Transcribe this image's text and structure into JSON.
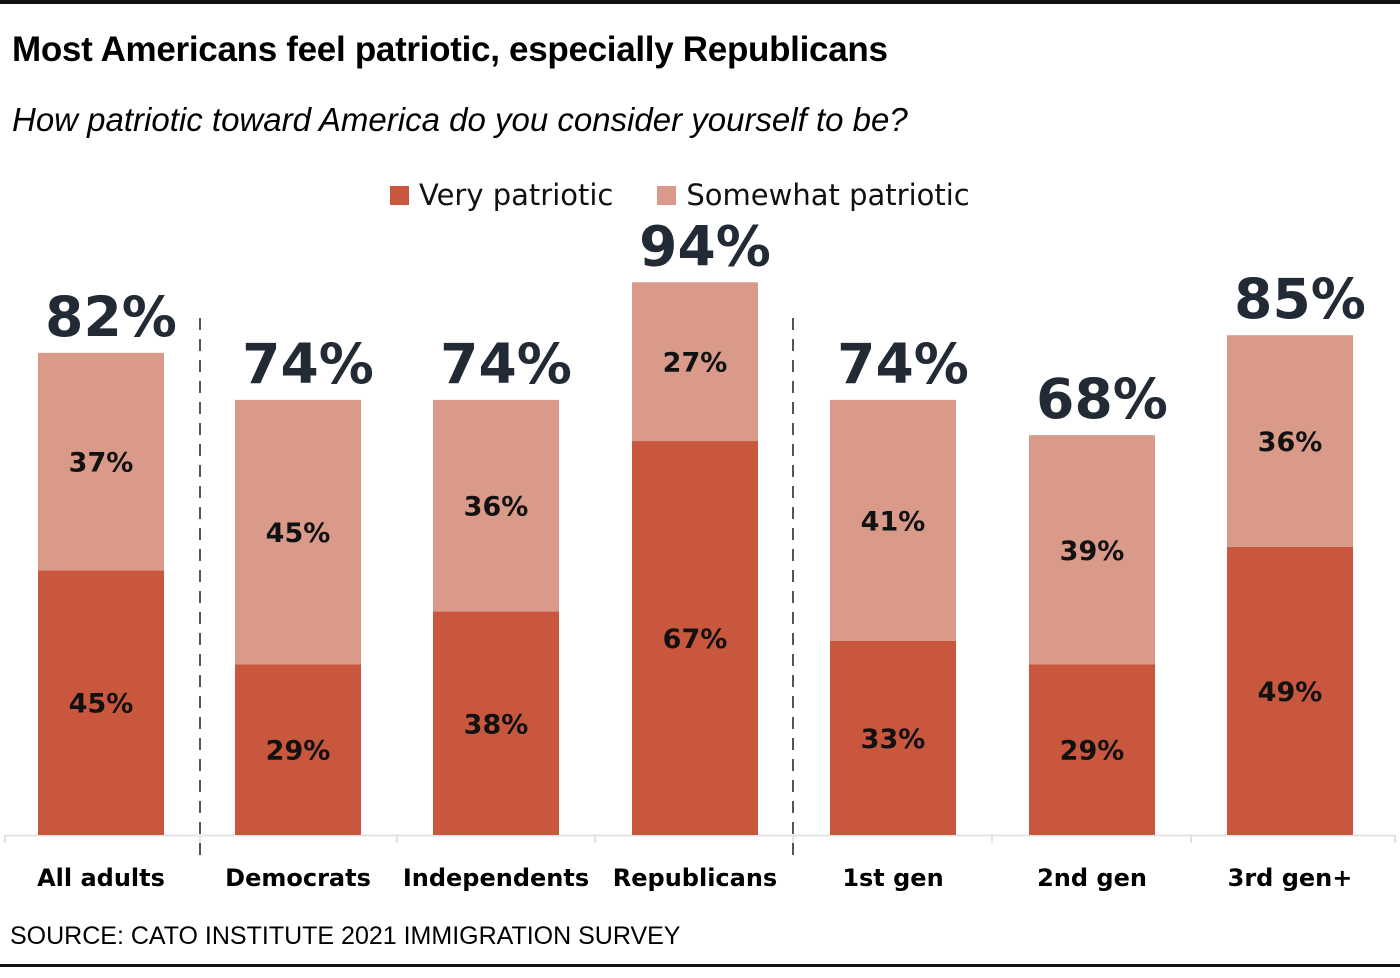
{
  "chart_data": {
    "type": "bar",
    "stacked": true,
    "title": "Most Americans feel patriotic, especially Republicans",
    "subtitle": "How patriotic toward America do you consider yourself to be?",
    "source": "SOURCE: CATO INSTITUTE 2021 IMMIGRATION SURVEY",
    "xlabel": "",
    "ylabel": "",
    "ylim": [
      0,
      100
    ],
    "grid": false,
    "legend_position": "top-center",
    "categories": [
      "All adults",
      "Democrats",
      "Independents",
      "Republicans",
      "1st gen",
      "2nd gen",
      "3rd gen+"
    ],
    "series": [
      {
        "name": "Very patriotic",
        "color": "#c9573e",
        "values": [
          45,
          29,
          38,
          67,
          33,
          29,
          49
        ],
        "labels": [
          "45%",
          "29%",
          "38%",
          "67%",
          "33%",
          "29%",
          "49%"
        ]
      },
      {
        "name": "Somewhat patriotic",
        "color": "#d99a89",
        "values": [
          37,
          45,
          36,
          27,
          41,
          39,
          36
        ],
        "labels": [
          "37%",
          "45%",
          "36%",
          "27%",
          "41%",
          "39%",
          "36%"
        ]
      }
    ],
    "totals": [
      82,
      74,
      74,
      94,
      74,
      68,
      85
    ],
    "total_labels": [
      "82%",
      "74%",
      "74%",
      "94%",
      "74%",
      "68%",
      "85%"
    ],
    "group_separators_after": [
      "All adults",
      "Republicans"
    ]
  },
  "colors": {
    "very": "#c9573e",
    "somewhat": "#d99a89",
    "total_text": "#222a35",
    "separator": "#555555",
    "axis": "#e3e3e3"
  }
}
